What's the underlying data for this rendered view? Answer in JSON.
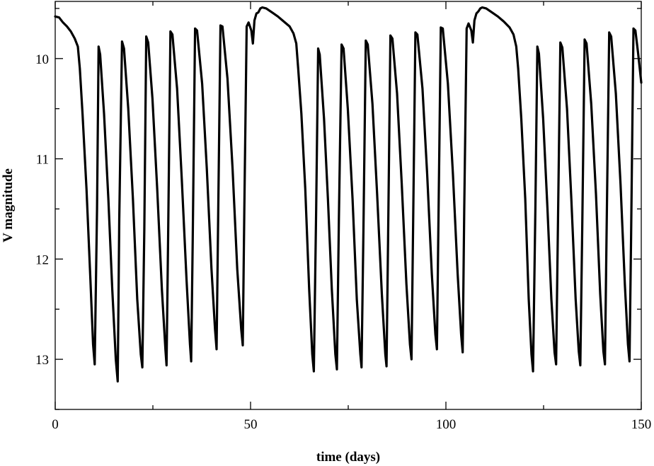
{
  "chart_data": {
    "type": "line",
    "title": "",
    "xlabel": "time (days)",
    "ylabel": "V magnitude",
    "xlim": [
      0,
      150
    ],
    "ylim": [
      9.43,
      13.5
    ],
    "y_inverted": true,
    "grid": false,
    "legend": "none",
    "x_ticks": [
      0,
      50,
      100,
      150
    ],
    "x_tick_labels": [
      "0",
      "50",
      "100",
      "150"
    ],
    "y_ticks": [
      10,
      11,
      12,
      13
    ],
    "y_tick_labels": [
      "10",
      "11",
      "12",
      "13"
    ],
    "series": [
      {
        "color": "#000000",
        "points": [
          [
            0,
            9.58
          ],
          [
            1,
            9.59
          ],
          [
            2,
            9.64
          ],
          [
            3,
            9.68
          ],
          [
            4,
            9.73
          ],
          [
            5,
            9.8
          ],
          [
            5.8,
            9.88
          ],
          [
            6.3,
            10.1
          ],
          [
            7,
            10.55
          ],
          [
            8,
            11.3
          ],
          [
            9,
            12.2
          ],
          [
            9.7,
            12.85
          ],
          [
            10.1,
            13.05
          ],
          [
            10.7,
            11.5
          ],
          [
            11.1,
            9.88
          ],
          [
            11.5,
            9.96
          ],
          [
            12.5,
            10.55
          ],
          [
            13.6,
            11.4
          ],
          [
            14.6,
            12.3
          ],
          [
            15.5,
            13.0
          ],
          [
            16,
            13.22
          ],
          [
            16.4,
            11.6
          ],
          [
            17.1,
            9.83
          ],
          [
            17.6,
            9.9
          ],
          [
            18.7,
            10.5
          ],
          [
            19.9,
            11.4
          ],
          [
            21,
            12.4
          ],
          [
            21.9,
            12.95
          ],
          [
            22.3,
            13.08
          ],
          [
            22.8,
            11.7
          ],
          [
            23.3,
            9.78
          ],
          [
            23.8,
            9.84
          ],
          [
            24.9,
            10.4
          ],
          [
            26.1,
            11.3
          ],
          [
            27.3,
            12.3
          ],
          [
            28.2,
            12.9
          ],
          [
            28.5,
            13.06
          ],
          [
            28.9,
            11.8
          ],
          [
            29.5,
            9.73
          ],
          [
            30,
            9.76
          ],
          [
            31.2,
            10.3
          ],
          [
            32.4,
            11.2
          ],
          [
            33.6,
            12.2
          ],
          [
            34.5,
            12.85
          ],
          [
            34.8,
            13.02
          ],
          [
            35.2,
            11.8
          ],
          [
            35.8,
            9.7
          ],
          [
            36.3,
            9.72
          ],
          [
            37.6,
            10.25
          ],
          [
            38.8,
            11.1
          ],
          [
            40,
            12.1
          ],
          [
            40.9,
            12.7
          ],
          [
            41.3,
            12.9
          ],
          [
            41.7,
            11.6
          ],
          [
            42.3,
            9.67
          ],
          [
            42.8,
            9.68
          ],
          [
            44.1,
            10.2
          ],
          [
            45.4,
            11.1
          ],
          [
            46.6,
            12.1
          ],
          [
            47.6,
            12.7
          ],
          [
            48,
            12.86
          ],
          [
            48.4,
            11.5
          ],
          [
            49,
            9.68
          ],
          [
            49.5,
            9.64
          ],
          [
            50.2,
            9.72
          ],
          [
            50.6,
            9.85
          ],
          [
            51,
            9.62
          ],
          [
            51.5,
            9.55
          ],
          [
            52,
            9.54
          ],
          [
            52.5,
            9.5
          ],
          [
            53,
            9.49
          ],
          [
            54,
            9.5
          ],
          [
            55.5,
            9.54
          ],
          [
            57,
            9.58
          ],
          [
            58.5,
            9.63
          ],
          [
            60,
            9.68
          ],
          [
            61,
            9.75
          ],
          [
            61.7,
            9.85
          ],
          [
            62.2,
            10.1
          ],
          [
            63,
            10.55
          ],
          [
            64,
            11.3
          ],
          [
            65,
            12.3
          ],
          [
            65.8,
            12.95
          ],
          [
            66.2,
            13.12
          ],
          [
            66.8,
            11.5
          ],
          [
            67.3,
            9.9
          ],
          [
            67.7,
            9.96
          ],
          [
            68.8,
            10.6
          ],
          [
            69.8,
            11.4
          ],
          [
            70.8,
            12.3
          ],
          [
            71.7,
            12.95
          ],
          [
            72.1,
            13.1
          ],
          [
            72.6,
            11.6
          ],
          [
            73.3,
            9.86
          ],
          [
            73.8,
            9.9
          ],
          [
            74.9,
            10.5
          ],
          [
            76.1,
            11.4
          ],
          [
            77.2,
            12.4
          ],
          [
            78.1,
            12.95
          ],
          [
            78.4,
            13.08
          ],
          [
            78.9,
            11.7
          ],
          [
            79.5,
            9.82
          ],
          [
            80,
            9.86
          ],
          [
            81.2,
            10.45
          ],
          [
            82.4,
            11.35
          ],
          [
            83.6,
            12.35
          ],
          [
            84.5,
            12.95
          ],
          [
            84.8,
            13.07
          ],
          [
            85.2,
            11.8
          ],
          [
            85.8,
            9.77
          ],
          [
            86.3,
            9.8
          ],
          [
            87.5,
            10.35
          ],
          [
            88.7,
            11.25
          ],
          [
            89.9,
            12.25
          ],
          [
            90.8,
            12.85
          ],
          [
            91.2,
            13.0
          ],
          [
            91.6,
            11.7
          ],
          [
            92.2,
            9.74
          ],
          [
            92.7,
            9.76
          ],
          [
            94,
            10.3
          ],
          [
            95.2,
            11.15
          ],
          [
            96.4,
            12.15
          ],
          [
            97.3,
            12.75
          ],
          [
            97.7,
            12.9
          ],
          [
            98.1,
            11.6
          ],
          [
            98.7,
            9.69
          ],
          [
            99.2,
            9.7
          ],
          [
            100.5,
            10.25
          ],
          [
            101.8,
            11.15
          ],
          [
            103,
            12.15
          ],
          [
            103.9,
            12.75
          ],
          [
            104.3,
            12.93
          ],
          [
            104.7,
            11.5
          ],
          [
            105.3,
            9.7
          ],
          [
            105.8,
            9.65
          ],
          [
            106.5,
            9.72
          ],
          [
            106.9,
            9.84
          ],
          [
            107.3,
            9.62
          ],
          [
            107.8,
            9.55
          ],
          [
            108.3,
            9.53
          ],
          [
            108.8,
            9.5
          ],
          [
            109.3,
            9.49
          ],
          [
            110.3,
            9.5
          ],
          [
            111.8,
            9.54
          ],
          [
            113.3,
            9.58
          ],
          [
            114.8,
            9.63
          ],
          [
            116.3,
            9.69
          ],
          [
            117.3,
            9.76
          ],
          [
            118,
            9.88
          ],
          [
            118.5,
            10.1
          ],
          [
            119.3,
            10.6
          ],
          [
            120.3,
            11.4
          ],
          [
            121.2,
            12.4
          ],
          [
            121.9,
            12.95
          ],
          [
            122.3,
            13.12
          ],
          [
            122.9,
            11.5
          ],
          [
            123.4,
            9.88
          ],
          [
            123.8,
            9.95
          ],
          [
            124.9,
            10.6
          ],
          [
            126,
            11.5
          ],
          [
            127,
            12.4
          ],
          [
            127.8,
            12.93
          ],
          [
            128.2,
            13.05
          ],
          [
            128.7,
            11.6
          ],
          [
            129.3,
            9.84
          ],
          [
            129.8,
            9.89
          ],
          [
            131,
            10.5
          ],
          [
            132.1,
            11.4
          ],
          [
            133.2,
            12.4
          ],
          [
            134,
            12.92
          ],
          [
            134.4,
            13.06
          ],
          [
            134.9,
            11.7
          ],
          [
            135.5,
            9.81
          ],
          [
            136,
            9.85
          ],
          [
            137.2,
            10.45
          ],
          [
            138.4,
            11.35
          ],
          [
            139.5,
            12.35
          ],
          [
            140.3,
            12.92
          ],
          [
            140.7,
            13.05
          ],
          [
            141.1,
            11.8
          ],
          [
            141.8,
            9.74
          ],
          [
            142.3,
            9.78
          ],
          [
            143.5,
            10.35
          ],
          [
            144.7,
            11.25
          ],
          [
            145.8,
            12.25
          ],
          [
            146.6,
            12.85
          ],
          [
            147,
            13.02
          ],
          [
            147.4,
            11.8
          ],
          [
            148,
            9.7
          ],
          [
            148.5,
            9.72
          ],
          [
            149.2,
            9.95
          ],
          [
            150,
            10.24
          ]
        ]
      }
    ]
  }
}
